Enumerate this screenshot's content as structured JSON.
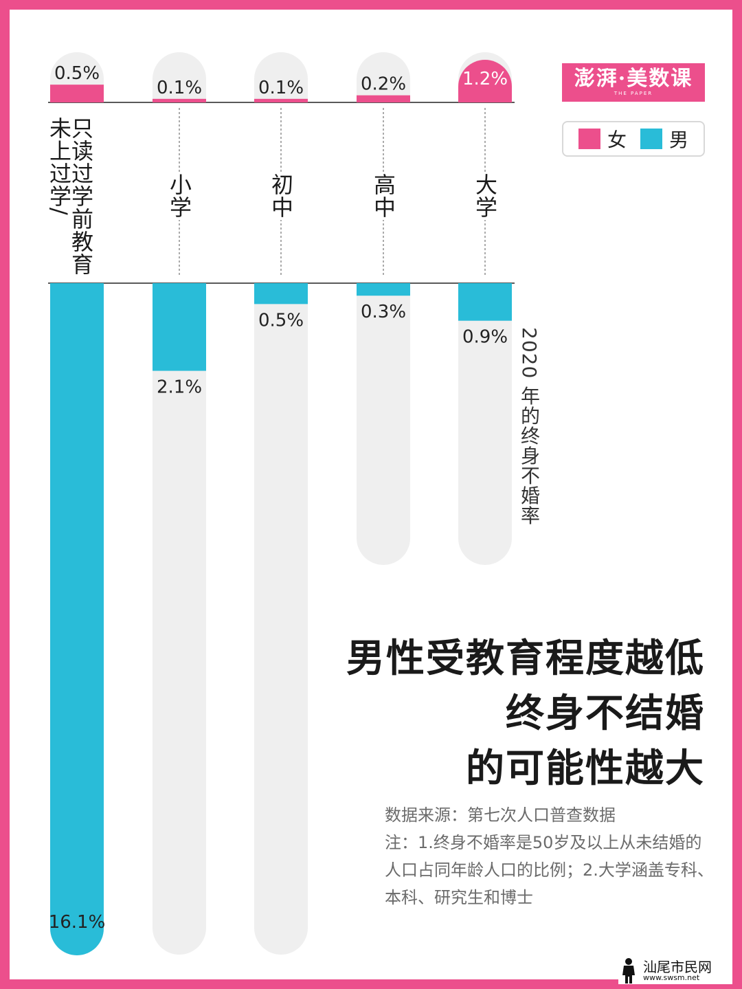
{
  "chart_data": {
    "type": "bar",
    "title": "",
    "axis_title": "2020 年的终身不婚率",
    "categories": [
      "只读过学前教育\n未上过学/",
      "小学",
      "初中",
      "高中",
      "大学"
    ],
    "series": [
      {
        "name": "女",
        "values": [
          0.5,
          0.1,
          0.1,
          0.2,
          1.2
        ],
        "labels": [
          "0.5%",
          "0.1%",
          "0.1%",
          "0.2%",
          "1.2%"
        ]
      },
      {
        "name": "男",
        "values": [
          16.1,
          2.1,
          0.5,
          0.3,
          0.9
        ],
        "labels": [
          "16.1%",
          "2.1%",
          "0.5%",
          "0.3%",
          "0.9%"
        ]
      }
    ],
    "ylim": [
      0,
      16.1
    ],
    "colors": {
      "female": "#ec4f8c",
      "male": "#29bcd8",
      "track": "#efefef"
    }
  },
  "logo": {
    "main": "澎湃·美数课",
    "sub": "THE PAPER"
  },
  "legend": {
    "female_label": "女",
    "male_label": "男"
  },
  "headline": [
    "男性受教育程度越低",
    "终身不结婚",
    "的可能性越大"
  ],
  "notes": {
    "source": "数据来源：第七次人口普查数据",
    "note": "注：1.终身不婚率是50岁及以上从未结婚的人口占同年龄人口的比例；2.大学涵盖专科、本科、研究生和博士"
  },
  "watermark": {
    "name": "汕尾市民网",
    "url": "www.swsm.net"
  }
}
